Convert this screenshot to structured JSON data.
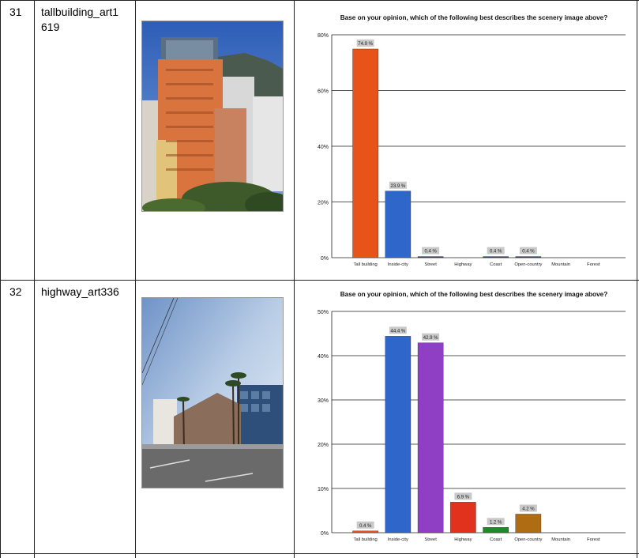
{
  "rows": [
    {
      "index": "31",
      "image_name": "tallbuilding_art1619",
      "image_name_lines": [
        "tallbuilding_art1",
        "619"
      ],
      "photo": "tall-buildings-photo",
      "chart_data": {
        "type": "bar",
        "title": "Base on your opinion, which of the following best describes the scenery image above?",
        "categories": [
          "Tall building",
          "Inside-city",
          "Street",
          "Highway",
          "Coast",
          "Open-country",
          "Mountain",
          "Forest"
        ],
        "values": [
          74.9,
          23.9,
          0.4,
          0,
          0.4,
          0.4,
          0,
          0
        ],
        "data_labels": [
          "74.9 %",
          "23.9 %",
          "0.4 %",
          "",
          "0.4 %",
          "0.4 %",
          "",
          ""
        ],
        "ylim": [
          0,
          80
        ],
        "yticks": [
          0,
          20,
          40,
          60,
          80
        ],
        "ytick_labels": [
          "0%",
          "20%",
          "40%",
          "60%",
          "80%"
        ],
        "colors": [
          "#e8531a",
          "#2f66c9",
          "#1c3f9a",
          "#1c3f9a",
          "#1c3f9a",
          "#1c3f9a",
          "#1c3f9a",
          "#1c3f9a"
        ],
        "grid": true
      }
    },
    {
      "index": "32",
      "image_name": "highway_art336",
      "image_name_lines": [
        "highway_art336"
      ],
      "photo": "highway-photo",
      "chart_data": {
        "type": "bar",
        "title": "Base on your opinion, which of the following best describes the scenery image above?",
        "categories": [
          "Tall building",
          "Inside-city",
          "Street",
          "Highway",
          "Coast",
          "Open-country",
          "Mountain",
          "Forest"
        ],
        "values": [
          0.4,
          44.4,
          42.9,
          6.9,
          1.2,
          4.2,
          0,
          0
        ],
        "data_labels": [
          "0.4 %",
          "44.4 %",
          "42.9 %",
          "6.9 %",
          "1.2 %",
          "4.2 %",
          "",
          ""
        ],
        "ylim": [
          0,
          50
        ],
        "yticks": [
          0,
          10,
          20,
          30,
          40,
          50
        ],
        "ytick_labels": [
          "0%",
          "10%",
          "20%",
          "30%",
          "40%",
          "50%"
        ],
        "colors": [
          "#e8531a",
          "#2f66c9",
          "#8e3fc4",
          "#e0321c",
          "#1e8a2a",
          "#b06c12",
          "#555555",
          "#555555"
        ],
        "grid": true
      }
    }
  ]
}
